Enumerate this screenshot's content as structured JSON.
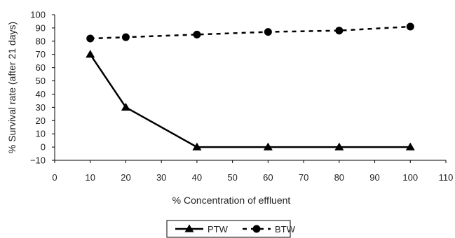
{
  "chart_data": {
    "type": "line",
    "title": "",
    "xlabel": "% Concentration of effluent",
    "ylabel": "% Survival rate (after 21 days)",
    "xlim": [
      0,
      110
    ],
    "ylim": [
      -10,
      100
    ],
    "xticks": [
      0,
      10,
      20,
      30,
      40,
      50,
      60,
      70,
      80,
      90,
      100,
      110
    ],
    "yticks": [
      -10,
      0,
      10,
      20,
      30,
      40,
      50,
      60,
      70,
      80,
      90,
      100
    ],
    "grid": false,
    "legend_position": "bottom",
    "series": [
      {
        "name": "PTW",
        "line_style": "solid",
        "marker": "triangle",
        "color": "#000000",
        "x": [
          10,
          20,
          40,
          60,
          80,
          100
        ],
        "y": [
          70,
          30,
          0,
          0,
          0,
          0
        ]
      },
      {
        "name": "BTW",
        "line_style": "dashed",
        "marker": "circle",
        "color": "#000000",
        "x": [
          10,
          20,
          40,
          60,
          80,
          100
        ],
        "y": [
          82,
          83,
          85,
          87,
          88,
          91
        ]
      }
    ]
  }
}
